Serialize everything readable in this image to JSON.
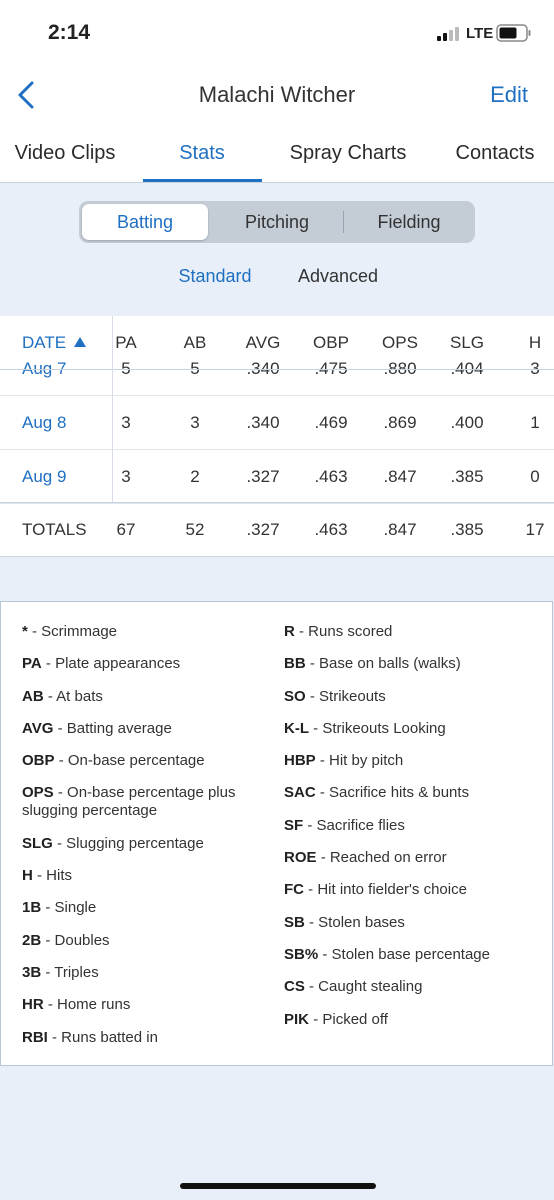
{
  "status_bar": {
    "time": "2:14",
    "network": "LTE"
  },
  "nav": {
    "title": "Malachi Witcher",
    "edit": "Edit"
  },
  "tabs": [
    "Video Clips",
    "Stats",
    "Spray Charts",
    "Contacts"
  ],
  "segments": [
    "Batting",
    "Pitching",
    "Fielding"
  ],
  "sub_tabs": [
    "Standard",
    "Advanced"
  ],
  "table": {
    "columns": [
      "DATE",
      "PA",
      "AB",
      "AVG",
      "OBP",
      "OPS",
      "SLG",
      "H"
    ],
    "rows": [
      [
        "Aug 7",
        "5",
        "5",
        ".340",
        ".475",
        ".880",
        ".404",
        "3"
      ],
      [
        "Aug 8",
        "3",
        "3",
        ".340",
        ".469",
        ".869",
        ".400",
        "1"
      ],
      [
        "Aug 9",
        "3",
        "2",
        ".327",
        ".463",
        ".847",
        ".385",
        "0"
      ]
    ],
    "totals": [
      "TOTALS",
      "67",
      "52",
      ".327",
      ".463",
      ".847",
      ".385",
      "17"
    ]
  },
  "legend": {
    "left": [
      {
        "abbr": "*",
        "desc": "- Scrimmage"
      },
      {
        "abbr": "PA",
        "desc": "- Plate appearances"
      },
      {
        "abbr": "AB",
        "desc": "- At bats"
      },
      {
        "abbr": "AVG",
        "desc": "- Batting average"
      },
      {
        "abbr": "OBP",
        "desc": "- On-base percentage"
      },
      {
        "abbr": "OPS",
        "desc": "- On-base percentage plus slugging percentage"
      },
      {
        "abbr": "SLG",
        "desc": "- Slugging percentage"
      },
      {
        "abbr": "H",
        "desc": "- Hits"
      },
      {
        "abbr": "1B",
        "desc": "- Single"
      },
      {
        "abbr": "2B",
        "desc": "- Doubles"
      },
      {
        "abbr": "3B",
        "desc": "- Triples"
      },
      {
        "abbr": "HR",
        "desc": "- Home runs"
      },
      {
        "abbr": "RBI",
        "desc": "- Runs batted in"
      }
    ],
    "right": [
      {
        "abbr": "R",
        "desc": "- Runs scored"
      },
      {
        "abbr": "BB",
        "desc": "- Base on balls (walks)"
      },
      {
        "abbr": "SO",
        "desc": "- Strikeouts"
      },
      {
        "abbr": "K-L",
        "desc": "- Strikeouts Looking"
      },
      {
        "abbr": "HBP",
        "desc": "- Hit by pitch"
      },
      {
        "abbr": "SAC",
        "desc": "- Sacrifice hits & bunts"
      },
      {
        "abbr": "SF",
        "desc": "- Sacrifice flies"
      },
      {
        "abbr": "ROE",
        "desc": "- Reached on error"
      },
      {
        "abbr": "FC",
        "desc": "- Hit into fielder's choice"
      },
      {
        "abbr": "SB",
        "desc": "- Stolen bases"
      },
      {
        "abbr": "SB%",
        "desc": "- Stolen base percentage"
      },
      {
        "abbr": "CS",
        "desc": "- Caught stealing"
      },
      {
        "abbr": "PIK",
        "desc": "- Picked off"
      }
    ]
  }
}
